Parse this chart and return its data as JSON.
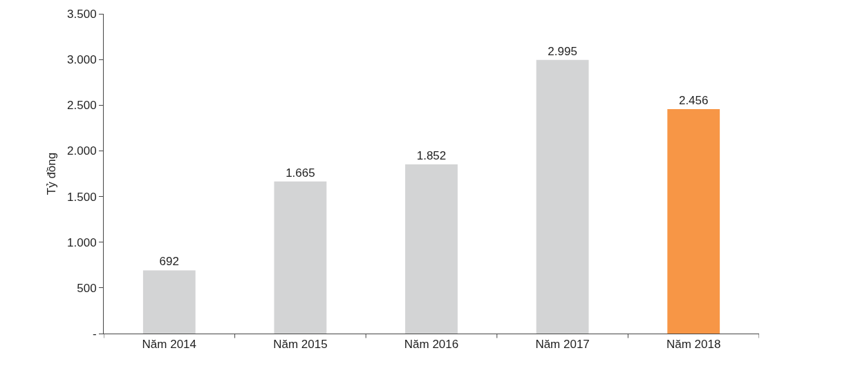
{
  "chart_data": {
    "type": "bar",
    "ylabel": "Tỷ đồng",
    "categories": [
      "Năm 2014",
      "Năm 2015",
      "Năm 2016",
      "Năm 2017",
      "Năm 2018"
    ],
    "values": [
      692,
      1665,
      1852,
      2995,
      2456
    ],
    "value_labels": [
      "692",
      "1.665",
      "1.852",
      "2.995",
      "2.456"
    ],
    "colors": [
      "#d3d4d5",
      "#d3d4d5",
      "#d3d4d5",
      "#d3d4d5",
      "#f79646"
    ],
    "ylim": [
      0,
      3500
    ],
    "yticks": [
      {
        "value": 0,
        "label": "-"
      },
      {
        "value": 500,
        "label": "500"
      },
      {
        "value": 1000,
        "label": "1.000"
      },
      {
        "value": 1500,
        "label": "1.500"
      },
      {
        "value": 2000,
        "label": "2.000"
      },
      {
        "value": 2500,
        "label": "2.500"
      },
      {
        "value": 3000,
        "label": "3.000"
      },
      {
        "value": 3500,
        "label": "3.500"
      }
    ],
    "grid": false
  }
}
